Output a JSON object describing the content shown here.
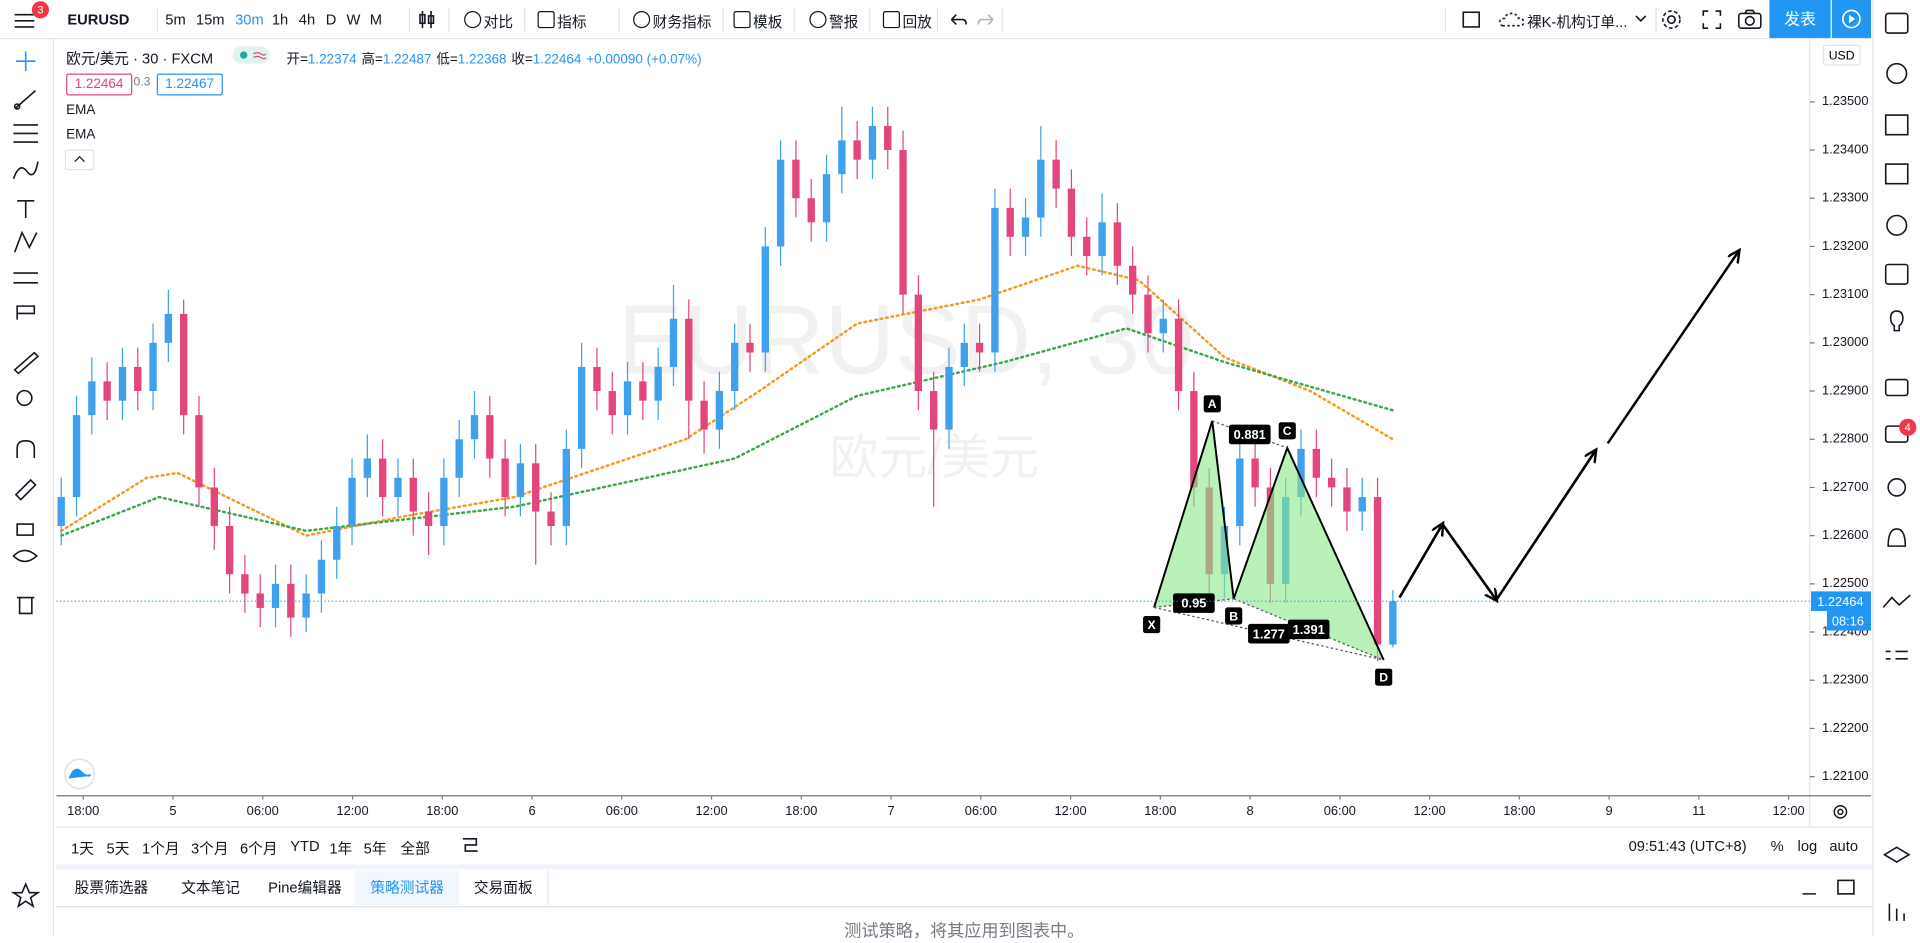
{
  "toolbar": {
    "menu_badge": "3",
    "symbol": "EURUSD",
    "intervals": [
      "5m",
      "15m",
      "30m",
      "1h",
      "4h",
      "D",
      "W",
      "M"
    ],
    "active_interval": "30m",
    "buttons": [
      "对比",
      "指标",
      "财务指标",
      "模板",
      "警报",
      "回放"
    ],
    "layout_name": "裸K-机构订单...",
    "publish": "发表"
  },
  "legend": {
    "title": "欧元/美元 · 30 · FXCM",
    "ohlc": [
      {
        "label": "开=",
        "value": "1.22374"
      },
      {
        "label": "高=",
        "value": "1.22487"
      },
      {
        "label": "低=",
        "value": "1.22368"
      },
      {
        "label": "收=",
        "value": "1.22464"
      }
    ],
    "change": "+0.00090 (+0.07%)",
    "bid": "1.22464",
    "spread": "0.3",
    "ask": "1.22467",
    "indicators": [
      "EMA",
      "EMA"
    ]
  },
  "chart_data": {
    "type": "candlestick",
    "watermark": "EURUSD, 30",
    "watermark_subtitle": "欧元/美元",
    "currency": "USD",
    "up_color": "#3fa0ee",
    "down_color": "#e3467c",
    "open": [
      1.2262,
      1.2268,
      1.2285,
      1.2292,
      1.2288,
      1.2295,
      1.229,
      1.23,
      1.2306,
      1.2285,
      1.227,
      1.2262,
      1.2252,
      1.2248,
      1.2245,
      1.225,
      1.2243,
      1.2248,
      1.2255,
      1.2262,
      1.2272,
      1.2276,
      1.2268,
      1.2272,
      1.2265,
      1.2262,
      1.2272,
      1.228,
      1.2285,
      1.2276,
      1.2268,
      1.2275,
      1.2265,
      1.2262,
      1.2278,
      1.2295,
      1.229,
      1.2285,
      1.2292,
      1.2288,
      1.2295,
      1.2305,
      1.2288,
      1.2282,
      1.229,
      1.23,
      1.2298,
      1.232,
      1.2338,
      1.233,
      1.2325,
      1.2335,
      1.2342,
      1.2338,
      1.2345,
      1.234,
      1.231,
      1.229,
      1.2282,
      1.2295,
      1.23,
      1.2298,
      1.2328,
      1.2322,
      1.2326,
      1.2338,
      1.2332,
      1.2322,
      1.2318,
      1.2325,
      1.2316,
      1.231,
      1.2302,
      1.2305,
      1.229,
      1.227,
      1.2252,
      1.2262,
      1.2276,
      1.227,
      1.225,
      1.2268,
      1.2278,
      1.2272,
      1.227,
      1.2265,
      1.2268,
      1.22374
    ],
    "high": [
      1.2272,
      1.2289,
      1.2297,
      1.2296,
      1.2299,
      1.2299,
      1.2304,
      1.2311,
      1.2309,
      1.2289,
      1.2274,
      1.2266,
      1.2256,
      1.2252,
      1.2254,
      1.2254,
      1.2252,
      1.2259,
      1.2266,
      1.2276,
      1.2281,
      1.228,
      1.2276,
      1.2276,
      1.2269,
      1.2276,
      1.2284,
      1.229,
      1.2289,
      1.228,
      1.2279,
      1.2279,
      1.2269,
      1.2282,
      1.23,
      1.2299,
      1.2294,
      1.2296,
      1.2296,
      1.2299,
      1.2312,
      1.2309,
      1.2292,
      1.2294,
      1.2304,
      1.2304,
      1.2324,
      1.2342,
      1.2342,
      1.2334,
      1.2339,
      1.2349,
      1.2346,
      1.2349,
      1.2349,
      1.2344,
      1.2314,
      1.2294,
      1.2299,
      1.2304,
      1.2304,
      1.2332,
      1.2332,
      1.233,
      1.2345,
      1.2342,
      1.2336,
      1.2326,
      1.2331,
      1.2329,
      1.232,
      1.2314,
      1.2309,
      1.2309,
      1.2294,
      1.2274,
      1.2266,
      1.2283,
      1.228,
      1.2274,
      1.2272,
      1.2282,
      1.2282,
      1.2276,
      1.2274,
      1.2272,
      1.2272,
      1.22487
    ],
    "low": [
      1.2258,
      1.2264,
      1.2281,
      1.2284,
      1.2284,
      1.2286,
      1.2286,
      1.2296,
      1.2281,
      1.2266,
      1.2257,
      1.2248,
      1.2244,
      1.2241,
      1.2241,
      1.2239,
      1.224,
      1.2244,
      1.2251,
      1.2258,
      1.2268,
      1.2264,
      1.2264,
      1.226,
      1.2256,
      1.2258,
      1.2268,
      1.2276,
      1.2272,
      1.2264,
      1.2264,
      1.2254,
      1.2258,
      1.2258,
      1.2274,
      1.2286,
      1.2281,
      1.2281,
      1.2284,
      1.2284,
      1.2291,
      1.228,
      1.2277,
      1.2278,
      1.2286,
      1.2294,
      1.2294,
      1.2316,
      1.2326,
      1.2321,
      1.2321,
      1.2331,
      1.2334,
      1.2334,
      1.2336,
      1.2306,
      1.2286,
      1.2266,
      1.2278,
      1.2291,
      1.2294,
      1.2294,
      1.2318,
      1.2318,
      1.2322,
      1.2328,
      1.2318,
      1.2314,
      1.2314,
      1.2312,
      1.2306,
      1.2298,
      1.2298,
      1.2286,
      1.2266,
      1.2246,
      1.2247,
      1.2258,
      1.2266,
      1.2246,
      1.2246,
      1.2264,
      1.2268,
      1.2266,
      1.2261,
      1.2261,
      1.2234,
      1.22368
    ],
    "close": [
      1.2268,
      1.2285,
      1.2292,
      1.2288,
      1.2295,
      1.229,
      1.23,
      1.2306,
      1.2285,
      1.227,
      1.2262,
      1.2252,
      1.2248,
      1.2245,
      1.225,
      1.2243,
      1.2248,
      1.2255,
      1.2262,
      1.2272,
      1.2276,
      1.2268,
      1.2272,
      1.2265,
      1.2262,
      1.2272,
      1.228,
      1.2285,
      1.2276,
      1.2268,
      1.2275,
      1.2265,
      1.2262,
      1.2278,
      1.2295,
      1.229,
      1.2285,
      1.2292,
      1.2288,
      1.2295,
      1.2305,
      1.2288,
      1.2282,
      1.229,
      1.23,
      1.2298,
      1.232,
      1.2338,
      1.233,
      1.2325,
      1.2335,
      1.2342,
      1.2338,
      1.2345,
      1.234,
      1.231,
      1.229,
      1.2282,
      1.2295,
      1.23,
      1.2298,
      1.2328,
      1.2322,
      1.2326,
      1.2338,
      1.2332,
      1.2322,
      1.2318,
      1.2325,
      1.2316,
      1.231,
      1.2302,
      1.2305,
      1.229,
      1.227,
      1.2252,
      1.2262,
      1.2276,
      1.227,
      1.225,
      1.2268,
      1.2278,
      1.2272,
      1.227,
      1.2265,
      1.2268,
      1.22374,
      1.22464
    ],
    "series": [
      {
        "name": "EMA",
        "color": "#f59a23",
        "x": [
          0,
          5.6,
          7.6,
          16,
          22.4,
          29.6,
          40.8,
          45.6,
          52,
          60,
          66.4,
          70.4,
          76,
          81.6,
          87
        ],
        "values": [
          1.2261,
          1.2272,
          1.2273,
          1.226,
          1.2264,
          1.2268,
          1.228,
          1.229,
          1.2304,
          1.2309,
          1.2316,
          1.2313,
          1.2297,
          1.229,
          1.228
        ]
      },
      {
        "name": "EMA",
        "color": "#3da74a",
        "x": [
          0,
          6.4,
          16,
          29.6,
          44,
          52,
          61.6,
          69.6,
          76,
          87
        ],
        "values": [
          1.226,
          1.2268,
          1.2261,
          1.2266,
          1.2276,
          1.2289,
          1.2296,
          1.2303,
          1.2296,
          1.2286
        ]
      }
    ],
    "ylim": [
      1.2206,
      1.2363
    ],
    "yticks": [
      {
        "value": 1.221,
        "label": "1.22100"
      },
      {
        "value": 1.222,
        "label": "1.22200"
      },
      {
        "value": 1.223,
        "label": "1.22300"
      },
      {
        "value": 1.224,
        "label": "1.22400"
      },
      {
        "value": 1.225,
        "label": "1.22500"
      },
      {
        "value": 1.226,
        "label": "1.22600"
      },
      {
        "value": 1.227,
        "label": "1.22700"
      },
      {
        "value": 1.228,
        "label": "1.22800"
      },
      {
        "value": 1.229,
        "label": "1.22900"
      },
      {
        "value": 1.23,
        "label": "1.23000"
      },
      {
        "value": 1.231,
        "label": "1.23100"
      },
      {
        "value": 1.232,
        "label": "1.23200"
      },
      {
        "value": 1.233,
        "label": "1.23300"
      },
      {
        "value": 1.234,
        "label": "1.23400"
      },
      {
        "value": 1.235,
        "label": "1.23500"
      }
    ],
    "xtick_labels": [
      "18:00",
      "5",
      "06:00",
      "12:00",
      "18:00",
      "6",
      "06:00",
      "12:00",
      "18:00",
      "7",
      "06:00",
      "12:00",
      "18:00",
      "8",
      "06:00",
      "12:00",
      "18:00",
      "9",
      "11",
      "12:00"
    ],
    "last_price": {
      "value": 1.22464,
      "label": "1.22464"
    },
    "countdown": "08:16",
    "pattern": {
      "color": "#8be88b",
      "points": [
        {
          "label": "X",
          "x": 71.4,
          "y": 1.22451
        },
        {
          "label": "A",
          "x": 75.2,
          "y": 1.22838
        },
        {
          "label": "B",
          "x": 76.6,
          "y": 1.22469
        },
        {
          "label": "C",
          "x": 80.1,
          "y": 1.22782
        },
        {
          "label": "D",
          "x": 86.4,
          "y": 1.22342
        }
      ],
      "ratios": [
        "0.881",
        "0.95",
        "1.277",
        "1.391"
      ]
    }
  },
  "range_bar": {
    "ranges": [
      "1天",
      "5天",
      "1个月",
      "3个月",
      "6个月",
      "YTD",
      "1年",
      "5年",
      "全部"
    ],
    "clock": "09:51:43 (UTC+8)",
    "scale_options": [
      "%",
      "log",
      "auto"
    ]
  },
  "panel": {
    "tabs": [
      "股票筛选器",
      "文本笔记",
      "Pine编辑器",
      "策略测试器",
      "交易面板"
    ],
    "active_tab": "策略测试器",
    "message": "测试策略，将其应用到图表中。"
  },
  "sidebar": {
    "alerts_badge": "4"
  }
}
